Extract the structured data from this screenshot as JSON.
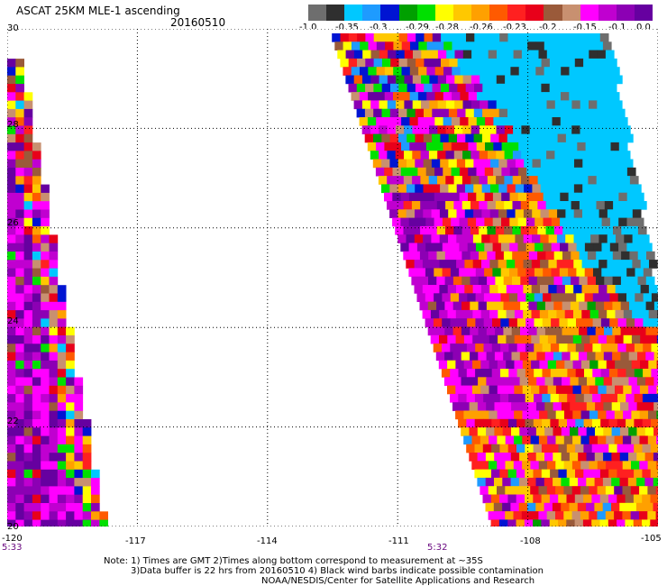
{
  "header": {
    "title": "ASCAT 25KM MLE-1 ascending",
    "date": "20160510"
  },
  "color_scale": {
    "colors": [
      "#6e6e6e",
      "#2f2f2f",
      "#00c8ff",
      "#1e9bff",
      "#0014d2",
      "#00a000",
      "#00e000",
      "#ffff00",
      "#ffc800",
      "#ffa000",
      "#ff5a00",
      "#ff2020",
      "#e8001a",
      "#9a5a3a",
      "#c89070",
      "#ff00ff",
      "#c000d0",
      "#8c00b4",
      "#6600a0"
    ],
    "labels": [
      "-1.0",
      "-0.35",
      "-0.3",
      "-0.29",
      "-0.28",
      "-0.26",
      "-0.23",
      "-0.2",
      "-0.15",
      "-0.1",
      "0.0"
    ]
  },
  "axes": {
    "lon_ticks": [
      "-120",
      "-117",
      "-114",
      "-111",
      "-108",
      "-105"
    ],
    "lat_ticks": [
      "30",
      "28",
      "26",
      "24",
      "22",
      "20"
    ],
    "xlim": [
      -120,
      -105
    ],
    "ylim": [
      20,
      30
    ]
  },
  "time_labels": [
    "5:33",
    "5:32"
  ],
  "footer": {
    "line1": "Note: 1) Times are GMT 2)Times along bottom correspond to measurement at ~35S",
    "line2": "3)Data buffer is 22 hrs from 20160510 4) Black wind barbs indicate possible contamination",
    "line3": "NOAA/NESDIS/Center for Satellite Applications and Research"
  },
  "swaths": [
    {
      "name": "west-swath",
      "lon_range": [
        -120,
        -117.8
      ],
      "lat_range": [
        20,
        29.4
      ]
    },
    {
      "name": "east-swath",
      "lon_range": [
        -112,
        -105
      ],
      "lat_range": [
        20,
        30
      ]
    }
  ]
}
